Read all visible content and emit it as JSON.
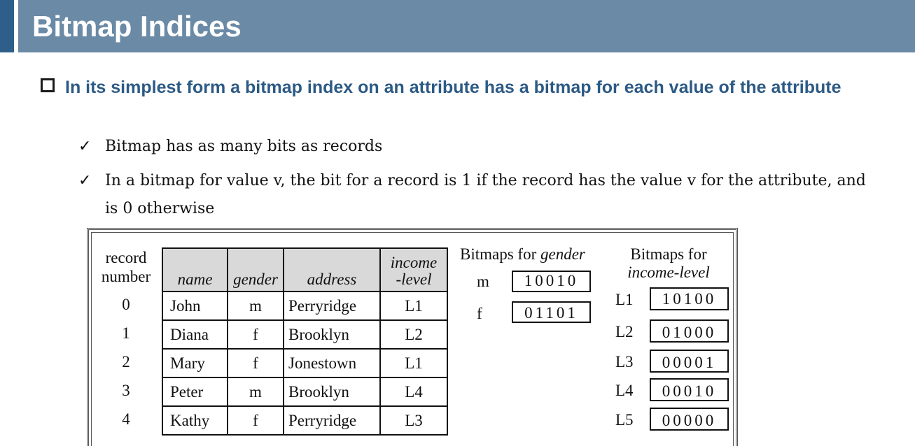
{
  "slide": {
    "title": "Bitmap Indices",
    "bullet": "In its simplest form a bitmap index on an attribute has a bitmap for each value of the attribute",
    "subbullets": [
      "Bitmap has as many bits as records",
      "In a bitmap for value v, the bit for a record is 1 if the record has the value v for the attribute, and is 0 otherwise"
    ],
    "check_glyph": "✓"
  },
  "figure": {
    "record_number_label_1": "record",
    "record_number_label_2": "number",
    "headers": {
      "name": "name",
      "gender": "gender",
      "address": "address",
      "income_1": "income",
      "income_2": "-level"
    },
    "rows": [
      {
        "num": "0",
        "name": "John",
        "gender": "m",
        "address": "Perryridge",
        "income": "L1"
      },
      {
        "num": "1",
        "name": "Diana",
        "gender": "f",
        "address": "Brooklyn",
        "income": "L2"
      },
      {
        "num": "2",
        "name": "Mary",
        "gender": "f",
        "address": "Jonestown",
        "income": "L1"
      },
      {
        "num": "3",
        "name": "Peter",
        "gender": "m",
        "address": "Brooklyn",
        "income": "L4"
      },
      {
        "num": "4",
        "name": "Kathy",
        "gender": "f",
        "address": "Perryridge",
        "income": "L3"
      }
    ],
    "gender_bitmaps": {
      "title_prefix": "Bitmaps for ",
      "title_attr": "gender",
      "items": [
        {
          "value": "m",
          "bits": "10010"
        },
        {
          "value": "f",
          "bits": "01101"
        }
      ]
    },
    "income_bitmaps": {
      "title_1": "Bitmaps for",
      "title_2": "income-level",
      "items": [
        {
          "value": "L1",
          "bits": "10100"
        },
        {
          "value": "L2",
          "bits": "01000"
        },
        {
          "value": "L3",
          "bits": "00001"
        },
        {
          "value": "L4",
          "bits": "00010"
        },
        {
          "value": "L5",
          "bits": "00000"
        }
      ]
    }
  },
  "colors": {
    "header_bg": "#6a8aa6",
    "header_accent": "#2d5f8a",
    "bullet_text": "#2c5a85",
    "table_header_bg": "#d9d9d9"
  }
}
